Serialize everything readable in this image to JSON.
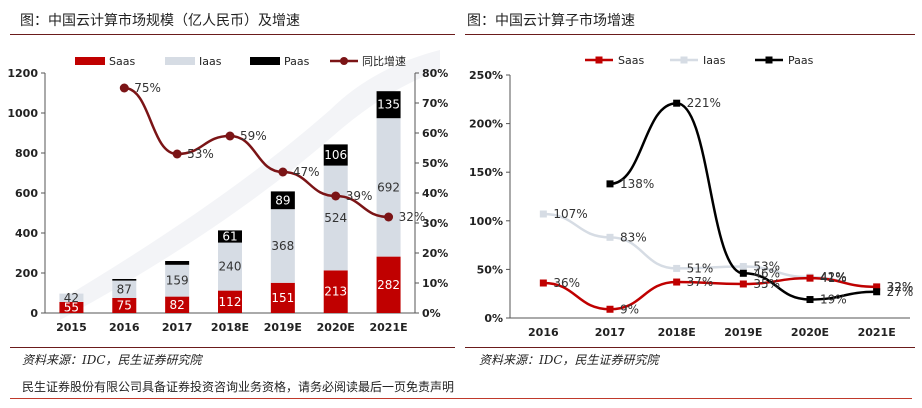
{
  "footer": {
    "disclaimer": "民生证券股份有限公司具备证券投资咨询业务资格，请务必阅读最后一页免责声明"
  },
  "chart_data": [
    {
      "type": "bar",
      "stacked": true,
      "panel_title": "图：中国云计算市场规模（亿人民币）及增速",
      "source": "资料来源：IDC，民生证券研究院",
      "categories": [
        "2015",
        "2016",
        "2017",
        "2018E",
        "2019E",
        "2020E",
        "2021E"
      ],
      "series": [
        {
          "name": "Saas",
          "color": "#c00000",
          "values": [
            55,
            75,
            82,
            112,
            151,
            213,
            282
          ],
          "labels": [
            "55",
            "75",
            "82",
            "112",
            "151",
            "213",
            "282"
          ]
        },
        {
          "name": "Iaas",
          "color": "#d6dce4",
          "values": [
            42,
            87,
            159,
            240,
            368,
            524,
            692
          ],
          "labels": [
            "42",
            "87",
            "159",
            "240",
            "368",
            "524",
            "692"
          ]
        },
        {
          "name": "Paas",
          "color": "#000000",
          "values": [
            0,
            8,
            19,
            61,
            89,
            106,
            135
          ],
          "labels": [
            "",
            "",
            "",
            "61",
            "89",
            "106",
            "135"
          ]
        }
      ],
      "line_series": {
        "name": "同比增速",
        "color": "#7b1416",
        "axis": "right",
        "values": [
          null,
          75,
          53,
          59,
          47,
          39,
          32
        ],
        "labels": [
          "",
          "75%",
          "53%",
          "59%",
          "47%",
          "39%",
          "32%"
        ]
      },
      "ylim": [
        0,
        1200
      ],
      "yticks": [
        "0",
        "200",
        "400",
        "600",
        "800",
        "1000",
        "1200"
      ],
      "y2lim": [
        0,
        80
      ],
      "y2ticks": [
        "0%",
        "10%",
        "20%",
        "30%",
        "40%",
        "50%",
        "60%",
        "70%",
        "80%"
      ],
      "legend": "top",
      "grid": false
    },
    {
      "type": "line",
      "panel_title": "图：中国云计算子市场增速",
      "source": "资料来源：IDC，民生证券研究院",
      "categories": [
        "2016",
        "2017",
        "2018E",
        "2019E",
        "2020E",
        "2021E"
      ],
      "series": [
        {
          "name": "Saas",
          "color": "#c00000",
          "values": [
            36,
            9,
            37,
            35,
            41,
            32
          ],
          "labels": [
            "36%",
            "9%",
            "37%",
            "35%",
            "41%",
            "32%"
          ]
        },
        {
          "name": "Iaas",
          "color": "#d6dce4",
          "values": [
            107,
            83,
            51,
            53,
            42,
            32
          ],
          "labels": [
            "107%",
            "83%",
            "51%",
            "53%",
            "42%",
            "32%"
          ]
        },
        {
          "name": "Paas",
          "color": "#000000",
          "values": [
            null,
            138,
            221,
            46,
            19,
            27
          ],
          "labels": [
            "",
            "138%",
            "221%",
            "46%",
            "19%",
            "27%"
          ]
        }
      ],
      "ylim": [
        0,
        250
      ],
      "yticks": [
        "0%",
        "50%",
        "100%",
        "150%",
        "200%",
        "250%"
      ],
      "legend": "top",
      "grid": false
    }
  ]
}
